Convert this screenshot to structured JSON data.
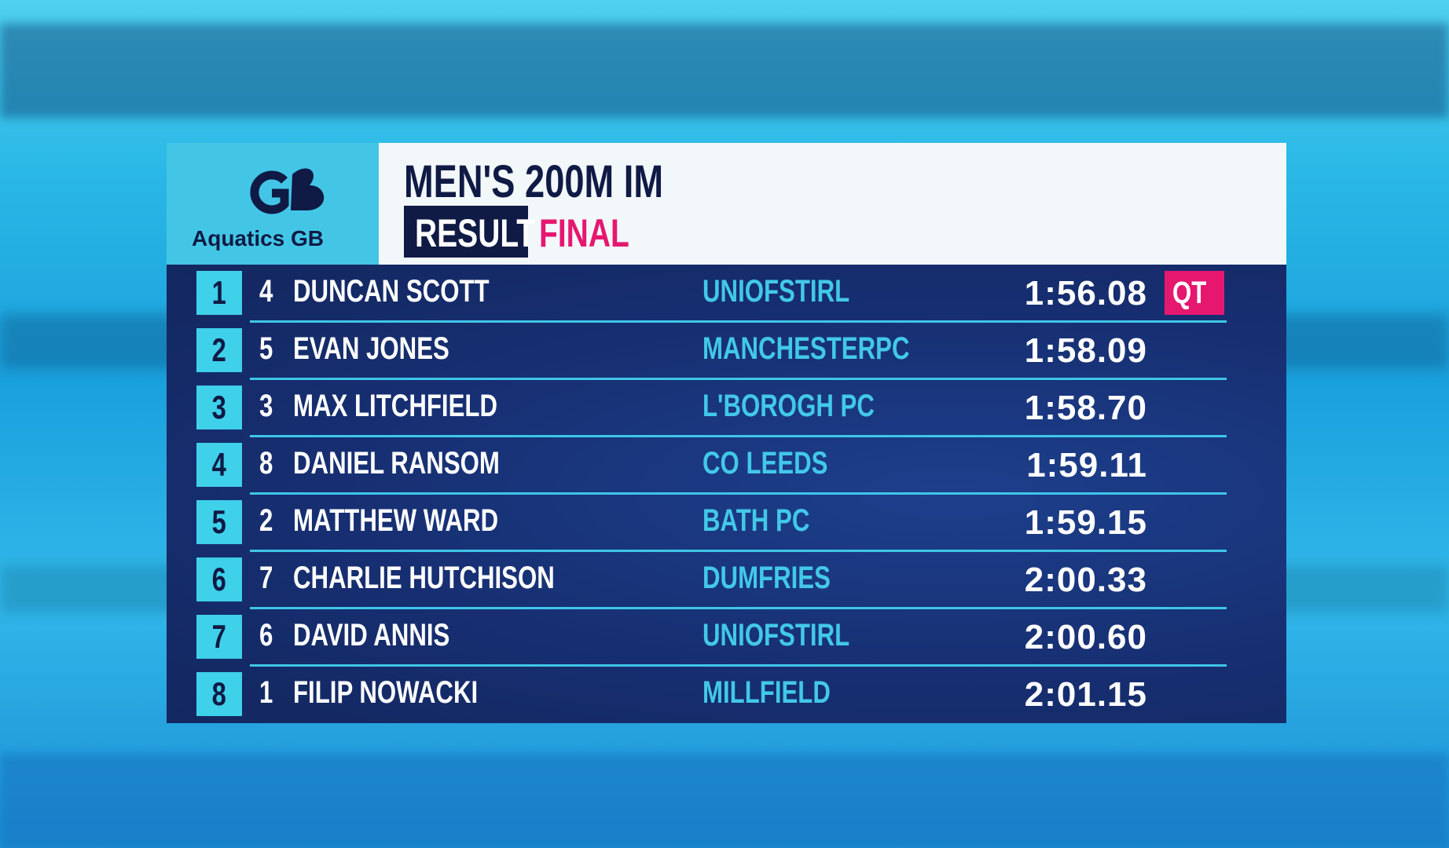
{
  "header": {
    "logo_text": "Aquatics GB",
    "title": "MEN'S 200M IM",
    "status": "RESULT",
    "round": "FINAL"
  },
  "results": {
    "rows": [
      {
        "place": 1,
        "lane": 4,
        "name": "DUNCAN SCOTT",
        "club": "UNIOFSTIRL",
        "time": "1:56.08",
        "tag": "QT"
      },
      {
        "place": 2,
        "lane": 5,
        "name": "EVAN JONES",
        "club": "MANCHESTERPC",
        "time": "1:58.09"
      },
      {
        "place": 3,
        "lane": 3,
        "name": "MAX LITCHFIELD",
        "club": "L'BOROGH PC",
        "time": "1:58.70"
      },
      {
        "place": 4,
        "lane": 8,
        "name": "DANIEL RANSOM",
        "club": "CO LEEDS",
        "time": "1:59.11"
      },
      {
        "place": 5,
        "lane": 2,
        "name": "MATTHEW WARD",
        "club": "BATH PC",
        "time": "1:59.15"
      },
      {
        "place": 6,
        "lane": 7,
        "name": "CHARLIE HUTCHISON",
        "club": "DUMFRIES",
        "time": "2:00.33"
      },
      {
        "place": 7,
        "lane": 6,
        "name": "DAVID ANNIS",
        "club": "UNIOFSTIRL",
        "time": "2:00.60"
      },
      {
        "place": 8,
        "lane": 1,
        "name": "FILIP NOWACKI",
        "club": "MILLFIELD",
        "time": "2:01.15"
      }
    ]
  }
}
